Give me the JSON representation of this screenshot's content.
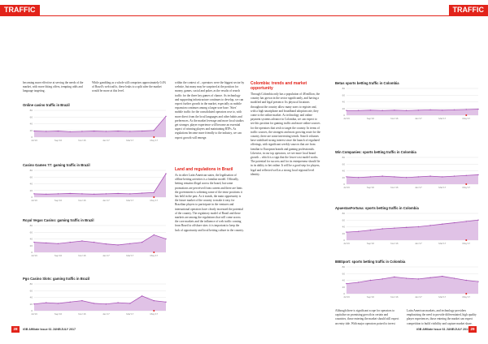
{
  "header": {
    "left": "TRAFFIC",
    "right": "TRAFFIC"
  },
  "left_page": {
    "col1_top": "becoming more effective at serving the needs of the market, with more fitting offers, tempting odds and language targeting.",
    "col2_top": "While gambling as a whole still comprises approximately 0.4% of Brazil's web traffic, these leaks to a split after the market would be more at this level.",
    "col3_p1": "within the context of – operators were the biggest sector by website, but many may be surprised at the position for money, games, social and poker, as the results of search traffic for the three key games of chance. As technology and supporting infrastructure continues to develop, we can expect further growth in the market, especially as mobile expansion continues among a larger user base. 'Sites' mobile traffic for the consolidated operators rose to, with more direct from the local languages and other habits and preferences. As the market leverage and more local studios get stronger, player experience will become an essential aspect of winning players and maintaining RTPs. As regulations become more friendly to the industry, we can expect growth will emerge.",
    "col3_heading": "Land and regulations in Brazil",
    "col3_p2": "As in other Latin American states, the legalisation of offline betting activities is a familiar model. Officially, betting remains illegal across the board, but some promotions are perceived from current and there are hints the government is softening some of the tense positions it has held in the past. As it stands, the main opportunity is the future market of the country to make it easy for Brazilian players to participate in the ventures and international operators have clearly increased the potential of the country. The regulatory model of Brazil and these markets are among the regulations that will come across the core markets and the influence of web traffic coming from Brazil to offshore sites: it is important to keep the lack of opportunity and local betting culture in the country."
  },
  "right_page": {
    "col1_heading": "Colombia: trends and market opportunity",
    "col1_text": "Through Colombia only has a population of 48 million, the country has grown in the sector significantly, and having a modified and legal presence. Its physical locations throughout the country allow many users to register and, with a high smartphone and broadband adoption rate, they come to the online market. As technology and online payment systems advance in Colombia, we can expect to see this position for gaming traffic and more online sources for the operators that wish to target the country. In terms of traffic sources, the strongest and most growing route for the country, there are some interesting trends. Search volumes have stabilised strong interest since the launch of regulated offerings, with significant weekly sources that are from familiar to European brands and gaming professionals. Likewise, in our top operators, we see more local brand growth – which is a sign that the lower-cost model works. The potential for success and for its entrepreneur should lie in its ability to bet online. It will be a good step for players, legal and reflected well as a strong local regional level identity.",
    "bottom_left": "Although there is significant scope for operators to capitalise on promising growth in certain and countries, those entering the market should still expect an entry tide. With major operators poised to invest more in Colombia and other",
    "bottom_right": "Latin American markets, and technology providers emphasising the need to provide differentiated, high quality player experiences, those entering the market can expect competition to build visibility and capture market share."
  },
  "charts": [
    {
      "type": "area",
      "title": "Online casino traffic in Brazil",
      "categories": [
        "Jul'16",
        null,
        "Sep'16",
        null,
        "Nov'16",
        null,
        "Jan'17",
        null,
        "Mar'17",
        null,
        "May'17",
        null
      ],
      "values": [
        18,
        17,
        18,
        16,
        17,
        18,
        17,
        18,
        17,
        18,
        20,
        62
      ],
      "ylim": [
        0,
        80
      ],
      "yticks": [
        0,
        20,
        40,
        60,
        80
      ]
    },
    {
      "type": "area",
      "title": "Casino Games 77: gaming traffic in Brazil",
      "categories": [
        "Jul'16",
        null,
        "Sep'16",
        null,
        "Nov'16",
        null,
        "Jan'17",
        null,
        "Mar'17",
        null,
        "May'17",
        null
      ],
      "values": [
        10,
        9,
        10,
        11,
        10,
        9,
        10,
        11,
        10,
        12,
        14,
        70
      ],
      "ylim": [
        0,
        80
      ],
      "yticks": [
        0,
        20,
        40,
        60,
        80
      ]
    },
    {
      "type": "area",
      "title": "Royal Vegas Casino: gaming traffic in Brazil",
      "categories": [
        "Jul'16",
        null,
        "Sep'16",
        null,
        "Nov'16",
        null,
        "Jan'17",
        null,
        "Mar'17",
        null,
        "May'17",
        null
      ],
      "values": [
        30,
        28,
        26,
        30,
        34,
        30,
        25,
        22,
        26,
        30,
        52,
        40
      ],
      "ylim": [
        0,
        80
      ],
      "yticks": [
        0,
        20,
        40,
        60,
        80
      ]
    },
    {
      "type": "area",
      "title": "Pgo Casino Slots: gaming traffic in Brazil",
      "categories": [
        "Jul'16",
        null,
        "Sep'16",
        null,
        "Nov'16",
        null,
        "Jan'17",
        null,
        "Mar'17",
        null,
        "May'17",
        null
      ],
      "values": [
        20,
        24,
        22,
        26,
        30,
        22,
        20,
        24,
        22,
        44,
        30,
        26
      ],
      "ylim": [
        0,
        80
      ],
      "yticks": [
        0,
        20,
        40,
        60,
        80
      ]
    },
    {
      "type": "area",
      "title": "Betus sports betting traffic in Colombia",
      "categories": [
        "Jul'16",
        null,
        "Sep'16",
        null,
        "Nov'16",
        null,
        "Jan'17",
        null,
        "Mar'17",
        null,
        "May'17",
        null
      ],
      "values": [
        14,
        14,
        15,
        14,
        15,
        14,
        15,
        16,
        15,
        16,
        17,
        18
      ],
      "ylim": [
        0,
        80
      ],
      "yticks": [
        0,
        20,
        40,
        60,
        80
      ]
    },
    {
      "type": "area",
      "title": "Win Companies: sports betting traffic in Colombia",
      "categories": [
        "Jul'16",
        null,
        "Sep'16",
        null,
        "Nov'16",
        null,
        "Jan'17",
        null,
        "Mar'17",
        null,
        "May'17",
        null
      ],
      "values": [
        22,
        20,
        22,
        24,
        22,
        20,
        22,
        24,
        22,
        24,
        26,
        28
      ],
      "ylim": [
        0,
        80
      ],
      "yticks": [
        0,
        20,
        40,
        60,
        80
      ]
    },
    {
      "type": "area",
      "title": "ApuestasFortuna: sports betting traffic in Colombia",
      "categories": [
        "Jul'16",
        null,
        "Sep'16",
        null,
        "Nov'16",
        null,
        "Jan'17",
        null,
        "Mar'17",
        null,
        "May'17",
        null
      ],
      "values": [
        24,
        26,
        30,
        34,
        36,
        38,
        40,
        44,
        48,
        52,
        56,
        60
      ],
      "ylim": [
        0,
        80
      ],
      "yticks": [
        0,
        20,
        40,
        60,
        80
      ]
    },
    {
      "type": "area",
      "title": "888Sport: sports betting traffic in Colombia",
      "categories": [
        "Jul'16",
        null,
        "Sep'16",
        null,
        "Nov'16",
        null,
        "Jan'17",
        null,
        "Mar'17",
        null,
        "May'17",
        null
      ],
      "values": [
        30,
        34,
        40,
        44,
        50,
        46,
        44,
        48,
        52,
        46,
        40,
        36
      ],
      "ylim": [
        0,
        80
      ],
      "yticks": [
        0,
        20,
        40,
        60,
        80
      ]
    }
  ],
  "footer": {
    "left_number": "28",
    "left_text": "iGB Affiliate Issue 61 JUNE/JULY 2017",
    "right_text": "iGB Affiliate Issue 61 JUNE/JULY 2017",
    "right_number": "29"
  }
}
